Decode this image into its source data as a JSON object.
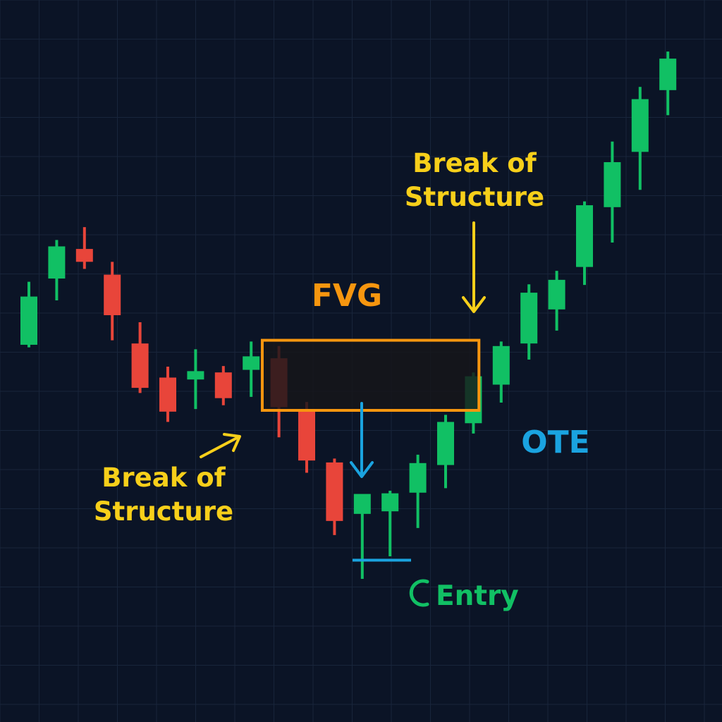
{
  "colors": {
    "background": "#0b1426",
    "grid": "#18253b",
    "bullish": "#11c064",
    "bearish": "#e8453a",
    "label_yellow": "#f7cf1a",
    "fvg_orange": "#f7960f",
    "ote_blue": "#1aa3e0",
    "entry_green": "#11c064"
  },
  "icons": {
    "bos_left_arrow": "arrow-up-right-icon",
    "bos_right_arrow": "arrow-down-icon",
    "ote_arrow": "arrow-down-icon",
    "entry_marker": "crescent-icon"
  },
  "chart_data": {
    "type": "candlestick",
    "title": "",
    "xlabel": "",
    "ylabel": "",
    "grid": true,
    "ylim": [
      0,
      100
    ],
    "candles": [
      {
        "open": 58.5,
        "high": 68.3,
        "low": 58.1,
        "close": 66.0
      },
      {
        "open": 68.8,
        "high": 74.8,
        "low": 65.4,
        "close": 73.8
      },
      {
        "open": 73.4,
        "high": 76.8,
        "low": 70.3,
        "close": 71.4
      },
      {
        "open": 69.4,
        "high": 71.4,
        "low": 59.2,
        "close": 63.1
      },
      {
        "open": 58.7,
        "high": 62.0,
        "low": 51.0,
        "close": 51.8
      },
      {
        "open": 53.4,
        "high": 55.1,
        "low": 46.5,
        "close": 48.1
      },
      {
        "open": 53.1,
        "high": 57.8,
        "low": 48.5,
        "close": 54.4
      },
      {
        "open": 54.2,
        "high": 55.2,
        "low": 49.1,
        "close": 50.2
      },
      {
        "open": 54.6,
        "high": 59.0,
        "low": 50.4,
        "close": 56.7
      },
      {
        "open": 56.4,
        "high": 58.3,
        "low": 44.1,
        "close": 48.8
      },
      {
        "open": 48.5,
        "high": 49.6,
        "low": 38.6,
        "close": 40.5
      },
      {
        "open": 40.2,
        "high": 40.8,
        "low": 28.9,
        "close": 31.1
      },
      {
        "open": 32.2,
        "high": 34.4,
        "low": 22.1,
        "close": 35.3
      },
      {
        "open": 32.6,
        "high": 35.8,
        "low": 25.6,
        "close": 35.4
      },
      {
        "open": 35.5,
        "high": 41.4,
        "low": 30.0,
        "close": 40.1
      },
      {
        "open": 39.8,
        "high": 47.6,
        "low": 36.2,
        "close": 46.5
      },
      {
        "open": 46.3,
        "high": 54.2,
        "low": 44.7,
        "close": 53.6
      },
      {
        "open": 52.3,
        "high": 59.0,
        "low": 49.5,
        "close": 58.3
      },
      {
        "open": 58.7,
        "high": 67.9,
        "low": 56.2,
        "close": 66.6
      },
      {
        "open": 64.0,
        "high": 70.0,
        "low": 60.7,
        "close": 68.6
      },
      {
        "open": 70.6,
        "high": 80.8,
        "low": 67.8,
        "close": 80.2
      },
      {
        "open": 79.9,
        "high": 90.1,
        "low": 74.4,
        "close": 86.9
      },
      {
        "open": 88.5,
        "high": 98.6,
        "low": 82.6,
        "close": 96.7
      },
      {
        "open": 98.1,
        "high": 104.1,
        "low": 94.2,
        "close": 103.0
      }
    ],
    "fvg_zone": {
      "x_start": 8.4,
      "x_end": 16.2,
      "y_low": 48.3,
      "y_high": 59.2
    },
    "entry_level": 25.0,
    "annotations": [
      {
        "text_line1": "Break of",
        "text_line2": "Structure",
        "at_candle": 8
      },
      {
        "text": "FVG"
      },
      {
        "text_line1": "Break of",
        "text_line2": "Structure",
        "at_candle": 16
      },
      {
        "text": "OTE"
      },
      {
        "text": "Entry"
      }
    ]
  }
}
